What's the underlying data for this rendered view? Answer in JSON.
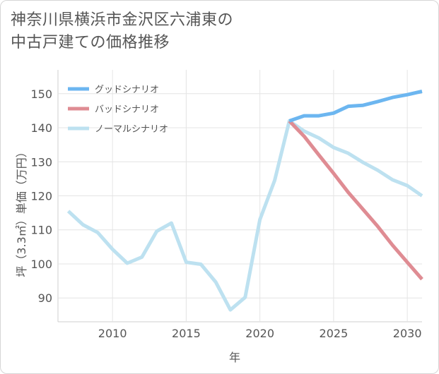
{
  "title_line1": "神奈川県横浜市金沢区六浦東の",
  "title_line2": "中古戸建ての価格推移",
  "chart_data": {
    "type": "line",
    "xlabel": "年",
    "ylabel": "坪（3.3㎡）単価（万円）",
    "xlim": [
      2006.3,
      2031
    ],
    "ylim": [
      83,
      157
    ],
    "x_ticks": [
      2010,
      2015,
      2020,
      2025,
      2030
    ],
    "y_ticks": [
      90,
      100,
      110,
      120,
      130,
      140,
      150
    ],
    "grid": true,
    "legend_position": "top-left",
    "series": [
      {
        "name": "グッドシナリオ",
        "color": "#6cb6f0",
        "x": [
          2022,
          2023,
          2024,
          2025,
          2026,
          2027,
          2028,
          2029,
          2030,
          2031
        ],
        "values": [
          142,
          143.5,
          143.5,
          144.3,
          146.3,
          146.6,
          147.7,
          148.9,
          149.7,
          150.7
        ]
      },
      {
        "name": "バッドシナリオ",
        "color": "#df8c93",
        "x": [
          2022,
          2023,
          2024,
          2025,
          2026,
          2027,
          2028,
          2029,
          2030,
          2031
        ],
        "values": [
          142,
          137.5,
          132,
          126.6,
          121,
          116,
          111,
          105.5,
          100.5,
          95.5
        ]
      },
      {
        "name": "ノーマルシナリオ",
        "color": "#bde1f0",
        "x": [
          2007,
          2008,
          2009,
          2010,
          2011,
          2012,
          2013,
          2014,
          2015,
          2016,
          2017,
          2018,
          2019,
          2020,
          2021,
          2022,
          2023,
          2024,
          2025,
          2026,
          2027,
          2028,
          2029,
          2030,
          2031
        ],
        "values": [
          115.5,
          111.5,
          109.2,
          104.3,
          100.2,
          102,
          109.6,
          112,
          100.5,
          99.9,
          94.7,
          86.5,
          90.2,
          113,
          124.5,
          142,
          139,
          137,
          134.2,
          132.5,
          129.8,
          127.5,
          124.7,
          123,
          120
        ]
      }
    ]
  }
}
